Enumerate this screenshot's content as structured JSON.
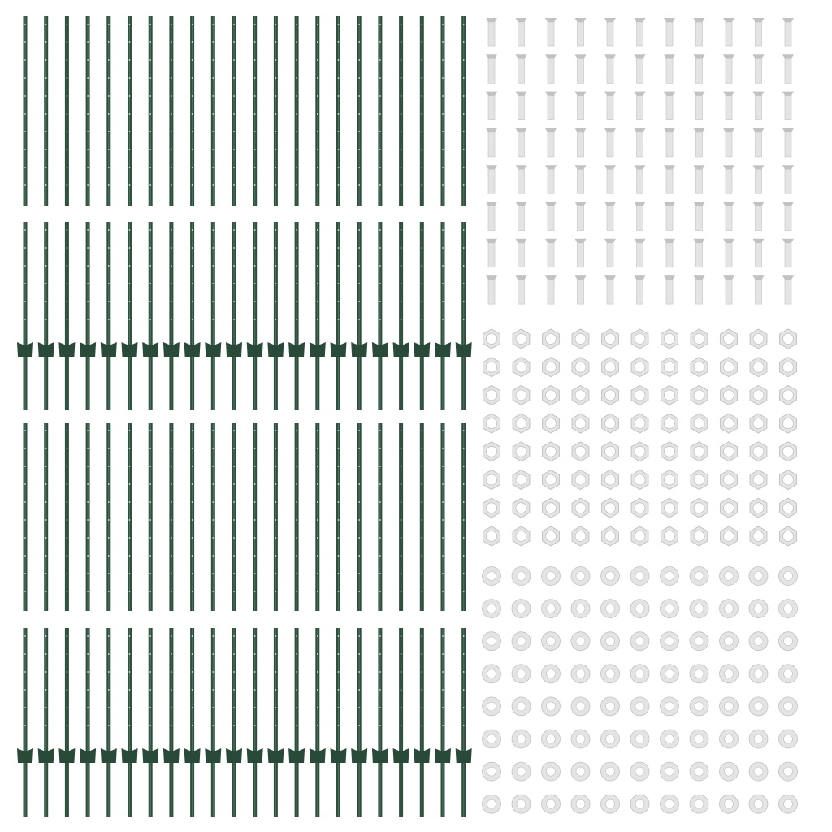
{
  "image": {
    "subject": "fence-post-kit",
    "colors": {
      "background": "#ffffff",
      "post": "#2f4f3e",
      "post_highlight": "#4d6e5b",
      "anchor_plate": "#2a4a39",
      "hardware": "#e4e4e4",
      "hardware_shade": "#c2c2c2"
    },
    "icons": [
      "fence-post-icon",
      "anchor-plate-icon",
      "bolt-icon",
      "hex-nut-icon",
      "washer-icon"
    ]
  }
}
